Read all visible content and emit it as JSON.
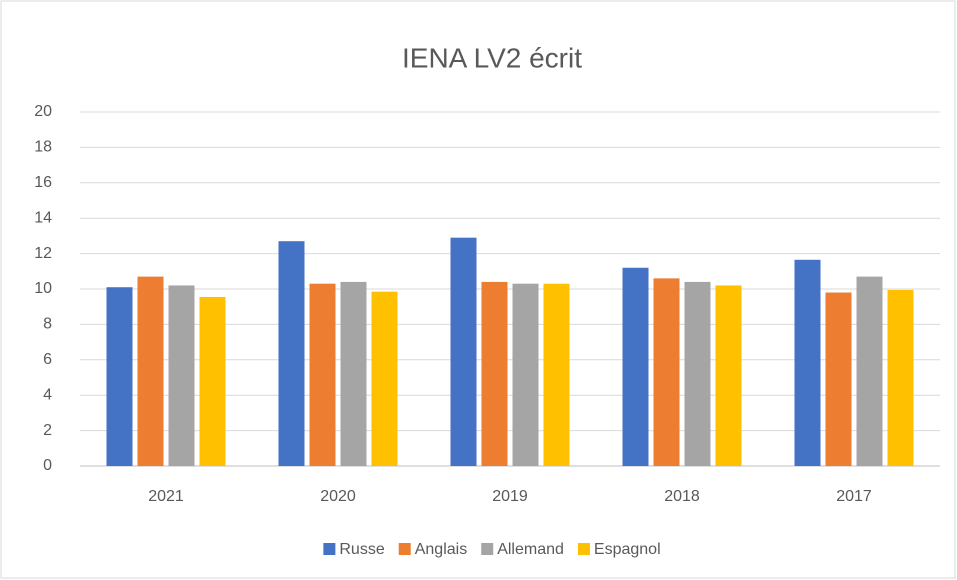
{
  "chart_data": {
    "type": "bar",
    "title": "IENA LV2 écrit",
    "categories": [
      "2021",
      "2020",
      "2019",
      "2018",
      "2017"
    ],
    "series": [
      {
        "name": "Russe",
        "color": "#4472c4",
        "values": [
          10.1,
          12.7,
          12.9,
          11.2,
          11.65
        ]
      },
      {
        "name": "Anglais",
        "color": "#ed7d31",
        "values": [
          10.7,
          10.3,
          10.4,
          10.6,
          9.8
        ]
      },
      {
        "name": "Allemand",
        "color": "#a5a5a5",
        "values": [
          10.2,
          10.4,
          10.3,
          10.4,
          10.7
        ]
      },
      {
        "name": "Espagnol",
        "color": "#ffc000",
        "values": [
          9.55,
          9.85,
          10.3,
          10.2,
          9.95
        ]
      }
    ],
    "ylim": [
      0,
      20
    ],
    "yticks": [
      0,
      2,
      4,
      6,
      8,
      10,
      12,
      14,
      16,
      18,
      20
    ],
    "grid": true,
    "legend": "bottom"
  }
}
